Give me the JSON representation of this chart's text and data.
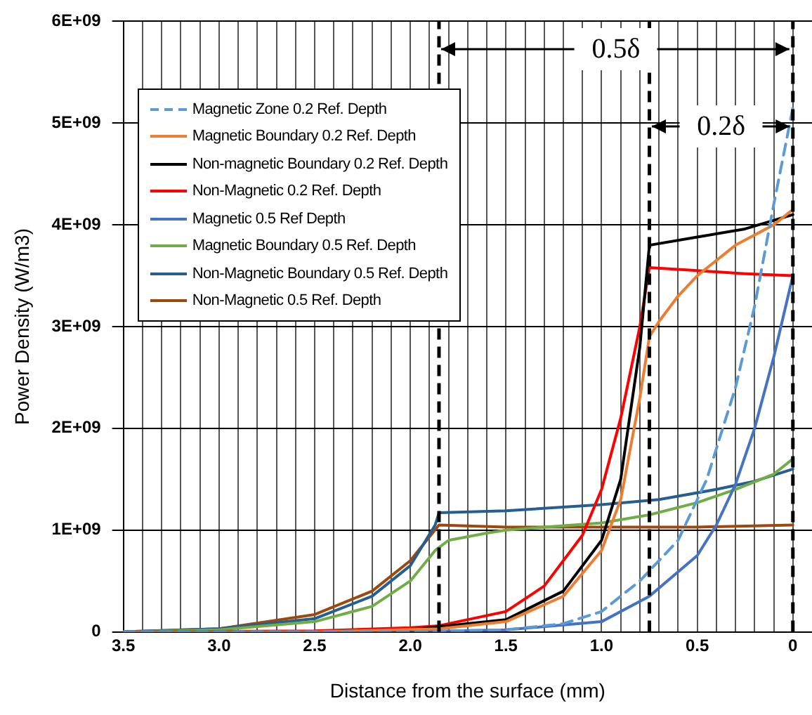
{
  "chart_data": {
    "type": "line",
    "xlabel": "Distance from the surface (mm)",
    "ylabel": "Power Density (W/m3)",
    "xlim": [
      3.5,
      -0.1
    ],
    "xticks": [
      {
        "value": 3.5,
        "label": "3.5"
      },
      {
        "value": 3.4,
        "label": null
      },
      {
        "value": 3.3,
        "label": null
      },
      {
        "value": 3.2,
        "label": null
      },
      {
        "value": 3.1,
        "label": null
      },
      {
        "value": 3,
        "label": "3.0"
      },
      {
        "value": 2.9,
        "label": null
      },
      {
        "value": 2.8,
        "label": null
      },
      {
        "value": 2.7,
        "label": null
      },
      {
        "value": 2.6,
        "label": null
      },
      {
        "value": 2.5,
        "label": "2.5"
      },
      {
        "value": 2.4,
        "label": null
      },
      {
        "value": 2.3,
        "label": null
      },
      {
        "value": 2.2,
        "label": null
      },
      {
        "value": 2.1,
        "label": null
      },
      {
        "value": 2,
        "label": "2.0"
      },
      {
        "value": 1.9,
        "label": null
      },
      {
        "value": 1.8,
        "label": null
      },
      {
        "value": 1.7,
        "label": null
      },
      {
        "value": 1.6,
        "label": null
      },
      {
        "value": 1.5,
        "label": "1.5"
      },
      {
        "value": 1.4,
        "label": null
      },
      {
        "value": 1.3,
        "label": null
      },
      {
        "value": 1.2,
        "label": null
      },
      {
        "value": 1.1,
        "label": null
      },
      {
        "value": 1,
        "label": "1.0"
      },
      {
        "value": 0.9,
        "label": null
      },
      {
        "value": 0.8,
        "label": null
      },
      {
        "value": 0.7,
        "label": null
      },
      {
        "value": 0.6,
        "label": null
      },
      {
        "value": 0.5,
        "label": "0.5"
      },
      {
        "value": 0.4,
        "label": null
      },
      {
        "value": 0.3,
        "label": null
      },
      {
        "value": 0.2,
        "label": null
      },
      {
        "value": 0.1,
        "label": null
      },
      {
        "value": 0,
        "label": "0"
      }
    ],
    "ylim": [
      0,
      6000000000.0
    ],
    "yticks": [
      0,
      {
        "value": 1000000000.0,
        "label": "1E+09"
      },
      {
        "value": 2000000000.0,
        "label": "2E+09"
      },
      {
        "value": 3000000000.0,
        "label": "3E+09"
      },
      {
        "value": 4000000000.0,
        "label": "4E+09"
      },
      {
        "value": 5000000000.0,
        "label": "5E+09"
      },
      {
        "value": 6000000000.0,
        "label": "6E+09"
      }
    ],
    "grid": true,
    "legend": "top left",
    "marker": "none",
    "series": [
      {
        "name": "Magnetic Zone 0.2 Ref. Depth",
        "color": "#5b9bd5",
        "line_style": "dashed",
        "x": [
          3.5,
          2.0,
          1.5,
          1.2,
          1.0,
          0.8,
          0.6,
          0.45,
          0.3,
          0.2,
          0.1,
          0
        ],
        "values": [
          0,
          0,
          20000000.0,
          80000000.0,
          200000000.0,
          500000000.0,
          900000000.0,
          1500000000.0,
          2400000000.0,
          3200000000.0,
          4200000000.0,
          5150000000.0
        ]
      },
      {
        "name": "Magnetic Boundary 0.2 Ref. Depth",
        "color": "#ed7d31",
        "x": [
          3.5,
          2.5,
          1.85,
          1.5,
          1.2,
          1.0,
          0.9,
          0.8,
          0.75,
          0.7,
          0.6,
          0.5,
          0.3,
          0.1,
          0
        ],
        "values": [
          0,
          0,
          30000000.0,
          100000000.0,
          350000000.0,
          800000000.0,
          1300000000.0,
          2300000000.0,
          2900000000.0,
          3050000000.0,
          3300000000.0,
          3500000000.0,
          3800000000.0,
          4000000000.0,
          4150000000.0
        ]
      },
      {
        "name": "Non-magnetic Boundary 0.2 Ref. Depth",
        "color": "#000000",
        "x": [
          3.5,
          2.5,
          2.0,
          1.85,
          1.5,
          1.2,
          1.0,
          0.9,
          0.8,
          0.75,
          0.5,
          0.25,
          0
        ],
        "values": [
          0,
          0,
          20000000.0,
          50000000.0,
          120000000.0,
          400000000.0,
          900000000.0,
          1500000000.0,
          2800000000.0,
          3800000000.0,
          3880000000.0,
          3960000000.0,
          4100000000.0
        ]
      },
      {
        "name": "Non-Magnetic 0.2 Ref. Depth",
        "color": "#ff0000",
        "x": [
          3.5,
          2.5,
          2.0,
          1.85,
          1.5,
          1.3,
          1.1,
          1.0,
          0.9,
          0.8,
          0.75,
          0.5,
          0.25,
          0
        ],
        "values": [
          0,
          10000000.0,
          40000000.0,
          60000000.0,
          200000000.0,
          450000000.0,
          950000000.0,
          1400000000.0,
          2100000000.0,
          3000000000.0,
          3580000000.0,
          3550000000.0,
          3520000000.0,
          3500000000.0
        ]
      },
      {
        "name": "Magnetic 0.5 Ref Depth",
        "color": "#4472c4",
        "x": [
          3.5,
          2.0,
          1.5,
          1.0,
          0.75,
          0.5,
          0.4,
          0.3,
          0.2,
          0.1,
          0
        ],
        "values": [
          0,
          0,
          20000000.0,
          100000000.0,
          350000000.0,
          750000000.0,
          1050000000.0,
          1450000000.0,
          2000000000.0,
          2700000000.0,
          3500000000.0
        ]
      },
      {
        "name": "Magnetic Boundary 0.5 Ref. Depth",
        "color": "#70ad47",
        "x": [
          3.5,
          3.0,
          2.5,
          2.2,
          2.0,
          1.87,
          1.8,
          1.6,
          1.5,
          1.0,
          0.75,
          0.5,
          0.3,
          0.1,
          0
        ],
        "values": [
          0,
          20000000.0,
          100000000.0,
          250000000.0,
          500000000.0,
          800000000.0,
          900000000.0,
          970000000.0,
          1000000000.0,
          1070000000.0,
          1150000000.0,
          1270000000.0,
          1400000000.0,
          1550000000.0,
          1700000000.0
        ]
      },
      {
        "name": "Non-Magnetic Boundary 0.5 Ref. Depth",
        "color": "#255e91",
        "x": [
          3.5,
          3.0,
          2.5,
          2.2,
          2.0,
          1.87,
          1.85,
          1.5,
          1.0,
          0.7,
          0.4,
          0.2,
          0
        ],
        "values": [
          0,
          30000000.0,
          130000000.0,
          350000000.0,
          650000000.0,
          1050000000.0,
          1170000000.0,
          1190000000.0,
          1250000000.0,
          1300000000.0,
          1400000000.0,
          1480000000.0,
          1600000000.0
        ]
      },
      {
        "name": "Non-Magnetic 0.5 Ref. Depth",
        "color": "#9e480e",
        "x": [
          3.5,
          3.0,
          2.5,
          2.2,
          2.0,
          1.85,
          1.5,
          1.0,
          0.5,
          0
        ],
        "values": [
          0,
          30000000.0,
          170000000.0,
          400000000.0,
          700000000.0,
          1050000000.0,
          1030000000.0,
          1030000000.0,
          1030000000.0,
          1050000000.0
        ]
      }
    ],
    "ref_lines": [
      {
        "axis": "x",
        "value": 1.85,
        "color": "#000000",
        "line_style": "dashed"
      },
      {
        "axis": "x",
        "value": 0.75,
        "color": "#000000",
        "line_style": "dashed"
      },
      {
        "axis": "x",
        "value": 0,
        "color": "#000000",
        "line_style": "dashed"
      }
    ],
    "annotations": [
      "0.5δ",
      "0.2δ"
    ]
  }
}
